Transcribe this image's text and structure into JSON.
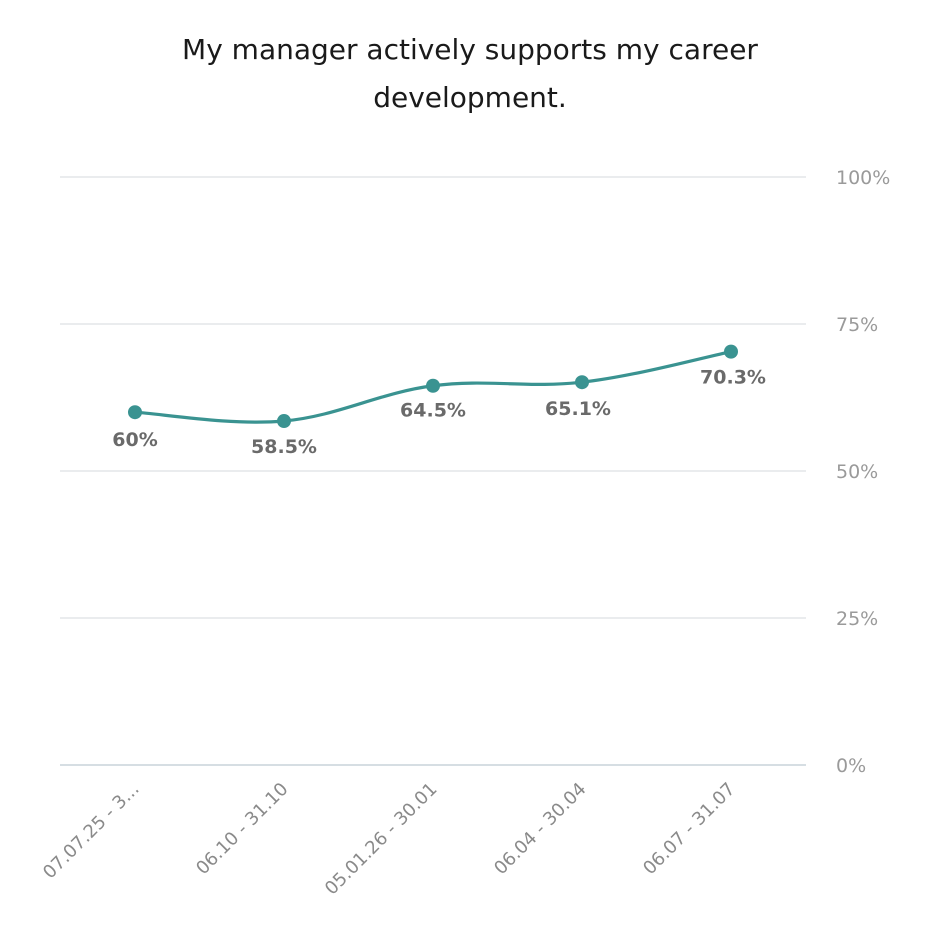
{
  "chart_data": {
    "type": "line",
    "title_lines": [
      "My manager actively supports my career",
      "development."
    ],
    "categories": [
      "07.07.25 - 3...",
      "06.10 - 31.10",
      "05.01.26 - 30.01",
      "06.04 - 30.04",
      "06.07 - 31.07"
    ],
    "series": [
      {
        "values": [
          60,
          58.5,
          64.5,
          65.1,
          70.3
        ],
        "labels": [
          "60%",
          "58.5%",
          "64.5%",
          "65.1%",
          "70.3%"
        ],
        "color": "#3a9391"
      }
    ],
    "y_ticks": [
      {
        "value": 100,
        "label": "100%"
      },
      {
        "value": 75,
        "label": "75%"
      },
      {
        "value": 50,
        "label": "50%"
      },
      {
        "value": 25,
        "label": "25%"
      },
      {
        "value": 0,
        "label": "0%"
      }
    ],
    "ylim": [
      0,
      100
    ],
    "y_axis_side": "right",
    "grid": true,
    "legend": "none"
  }
}
